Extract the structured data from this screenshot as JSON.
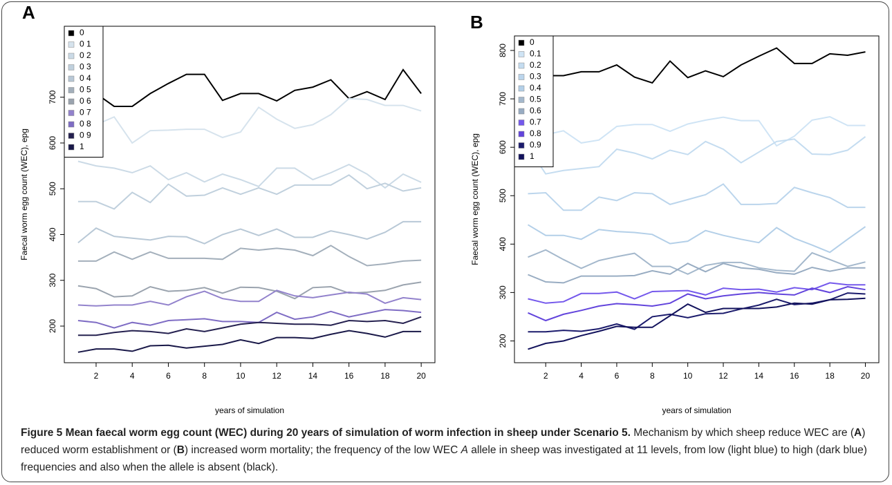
{
  "chart_data": [
    {
      "type": "line",
      "label": "A",
      "xlabel": "years of simulation",
      "ylabel": "Faecal worm egg count (WEC), epg",
      "x": [
        1,
        2,
        3,
        4,
        5,
        6,
        7,
        8,
        9,
        10,
        11,
        12,
        13,
        14,
        15,
        16,
        17,
        18,
        19,
        20
      ],
      "xlim": [
        0.24,
        20.76
      ],
      "xticks": [
        2,
        4,
        6,
        8,
        10,
        12,
        14,
        16,
        18,
        20
      ],
      "ylim": [
        120,
        855
      ],
      "yticks": [
        200,
        300,
        400,
        500,
        600,
        700
      ],
      "legend": "top-left",
      "series": [
        {
          "name": "0",
          "color": "#000000",
          "values": [
            718,
            708,
            680,
            680,
            708,
            730,
            750,
            750,
            693,
            708,
            708,
            692,
            715,
            722,
            738,
            697,
            712,
            695,
            760,
            708
          ]
        },
        {
          "name": "0 1",
          "color": "#d6e3ed",
          "values": [
            640,
            640,
            657,
            600,
            627,
            628,
            630,
            630,
            612,
            624,
            678,
            652,
            632,
            640,
            662,
            697,
            695,
            682,
            682,
            670
          ]
        },
        {
          "name": "0 2",
          "color": "#cbdae6",
          "values": [
            560,
            550,
            545,
            535,
            550,
            520,
            535,
            515,
            532,
            520,
            505,
            545,
            545,
            520,
            535,
            553,
            532,
            502,
            532,
            514
          ]
        },
        {
          "name": "0 3",
          "color": "#c0d0dd",
          "values": [
            472,
            472,
            456,
            492,
            470,
            510,
            484,
            486,
            502,
            488,
            502,
            488,
            508,
            508,
            508,
            530,
            500,
            512,
            495,
            502
          ]
        },
        {
          "name": "0 4",
          "color": "#b8c8d6",
          "values": [
            382,
            414,
            396,
            392,
            388,
            396,
            395,
            380,
            400,
            412,
            398,
            412,
            394,
            394,
            408,
            400,
            390,
            405,
            428,
            428
          ]
        },
        {
          "name": "0 5",
          "color": "#a3afbb",
          "values": [
            342,
            342,
            362,
            346,
            362,
            348,
            348,
            348,
            346,
            370,
            366,
            370,
            366,
            354,
            376,
            352,
            332,
            336,
            342,
            344
          ]
        },
        {
          "name": "0 6",
          "color": "#9aa3ae",
          "values": [
            288,
            282,
            264,
            266,
            286,
            276,
            278,
            284,
            272,
            285,
            284,
            276,
            260,
            284,
            286,
            272,
            274,
            278,
            290,
            296
          ]
        },
        {
          "name": "0 7",
          "color": "#9282cc",
          "values": [
            246,
            244,
            246,
            246,
            254,
            246,
            264,
            276,
            260,
            254,
            254,
            278,
            266,
            262,
            268,
            274,
            270,
            250,
            262,
            258
          ]
        },
        {
          "name": "0 8",
          "color": "#7e6cc4",
          "values": [
            212,
            208,
            196,
            208,
            202,
            212,
            214,
            216,
            210,
            210,
            208,
            230,
            215,
            220,
            232,
            220,
            228,
            236,
            234,
            230
          ]
        },
        {
          "name": "0 9",
          "color": "#24204f",
          "values": [
            180,
            180,
            186,
            190,
            188,
            184,
            194,
            188,
            196,
            204,
            208,
            206,
            204,
            204,
            202,
            212,
            210,
            212,
            206,
            220
          ]
        },
        {
          "name": "1",
          "color": "#191848",
          "values": [
            143,
            150,
            150,
            145,
            157,
            158,
            152,
            156,
            160,
            170,
            162,
            175,
            175,
            173,
            182,
            190,
            184,
            176,
            188,
            188
          ]
        }
      ]
    },
    {
      "type": "line",
      "label": "B",
      "xlabel": "years of simulation",
      "ylabel": "Faecal worm egg count (WEC), epg",
      "x": [
        1,
        2,
        3,
        4,
        5,
        6,
        7,
        8,
        9,
        10,
        11,
        12,
        13,
        14,
        15,
        16,
        17,
        18,
        19,
        20
      ],
      "xlim": [
        0.24,
        20.76
      ],
      "xticks": [
        2,
        4,
        6,
        8,
        10,
        12,
        14,
        16,
        18,
        20
      ],
      "ylim": [
        155,
        830
      ],
      "yticks": [
        200,
        300,
        400,
        500,
        600,
        700,
        800
      ],
      "legend": "top-left",
      "series": [
        {
          "name": "0",
          "color": "#000000",
          "values": [
            750,
            748,
            748,
            756,
            756,
            770,
            745,
            733,
            778,
            744,
            758,
            746,
            770,
            788,
            805,
            773,
            773,
            793,
            790,
            797
          ]
        },
        {
          "name": "0.1",
          "color": "#cfe4f5",
          "values": [
            640,
            626,
            634,
            609,
            615,
            643,
            647,
            647,
            633,
            648,
            656,
            662,
            655,
            655,
            603,
            623,
            656,
            663,
            645,
            645
          ]
        },
        {
          "name": "0.2",
          "color": "#c4dcf0",
          "values": [
            600,
            545,
            552,
            556,
            560,
            596,
            588,
            576,
            594,
            585,
            612,
            596,
            568,
            590,
            612,
            617,
            586,
            585,
            594,
            622
          ]
        },
        {
          "name": "0.3",
          "color": "#bbd5ec",
          "values": [
            504,
            506,
            470,
            470,
            497,
            490,
            506,
            504,
            482,
            492,
            502,
            524,
            482,
            482,
            484,
            517,
            506,
            496,
            476,
            476
          ]
        },
        {
          "name": "0.4",
          "color": "#b3cfe8",
          "values": [
            440,
            418,
            418,
            410,
            430,
            426,
            424,
            420,
            401,
            406,
            428,
            418,
            410,
            403,
            434,
            412,
            398,
            383,
            410,
            436
          ]
        },
        {
          "name": "0.5",
          "color": "#a4b8cc",
          "values": [
            373,
            388,
            368,
            350,
            366,
            374,
            381,
            354,
            354,
            338,
            356,
            362,
            362,
            351,
            346,
            344,
            382,
            368,
            354,
            363
          ]
        },
        {
          "name": "0.6",
          "color": "#98acc2",
          "values": [
            337,
            322,
            320,
            334,
            334,
            334,
            335,
            345,
            338,
            360,
            343,
            360,
            351,
            348,
            341,
            338,
            352,
            344,
            351,
            351
          ]
        },
        {
          "name": "0.7",
          "color": "#7458ec",
          "values": [
            287,
            278,
            281,
            298,
            298,
            301,
            287,
            302,
            303,
            304,
            295,
            309,
            306,
            307,
            301,
            310,
            306,
            320,
            316,
            316
          ]
        },
        {
          "name": "0.8",
          "color": "#6244dc",
          "values": [
            258,
            242,
            255,
            263,
            272,
            277,
            275,
            272,
            278,
            297,
            287,
            293,
            297,
            300,
            297,
            295,
            309,
            300,
            312,
            306
          ]
        },
        {
          "name": "0.9",
          "color": "#1b1b6c",
          "values": [
            219,
            219,
            222,
            220,
            225,
            235,
            224,
            250,
            255,
            248,
            256,
            257,
            266,
            274,
            286,
            275,
            278,
            285,
            299,
            297
          ]
        },
        {
          "name": "1",
          "color": "#12125c",
          "values": [
            183,
            195,
            200,
            211,
            220,
            230,
            228,
            228,
            252,
            276,
            259,
            267,
            267,
            267,
            270,
            278,
            276,
            285,
            286,
            288
          ]
        }
      ]
    }
  ],
  "caption": [
    {
      "text": "Figure 5 Mean faecal worm egg count (WEC) during 20 years of simulation of worm infection in sheep under Scenario 5.",
      "style": "bold"
    },
    {
      "text": " Mechanism by which sheep reduce WEC are (",
      "style": "normal"
    },
    {
      "text": "A",
      "style": "bold"
    },
    {
      "text": ") reduced worm establishment or (",
      "style": "normal"
    },
    {
      "text": "B",
      "style": "bold"
    },
    {
      "text": ") increased worm mortality; the frequency of the low WEC ",
      "style": "normal"
    },
    {
      "text": "A",
      "style": "italic"
    },
    {
      "text": " allele in sheep was investigated at 11 levels, from low (light blue) to high (dark blue) frequencies and also when the allele is absent (black).",
      "style": "normal"
    }
  ]
}
